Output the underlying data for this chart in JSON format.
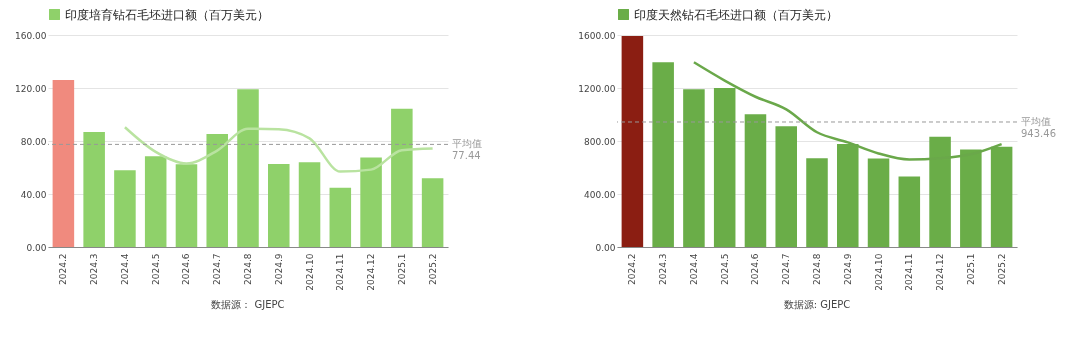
{
  "chart_data": [
    {
      "type": "bar",
      "categories": [
        "2024.2",
        "2024.3",
        "2024.4",
        "2024.5",
        "2024.6",
        "2024.7",
        "2024.8",
        "2024.9",
        "2024.10",
        "2024.11",
        "2024.12",
        "2025.1",
        "2025.2"
      ],
      "series": [
        {
          "name": "印度培育钻石毛坯进口额（百万美元）",
          "color": "#8fd16a",
          "colors": [
            "#f08a7e",
            "#8fd16a",
            "#8fd16a",
            "#8fd16a",
            "#8fd16a",
            "#8fd16a",
            "#8fd16a",
            "#8fd16a",
            "#8fd16a",
            "#8fd16a",
            "#8fd16a",
            "#8fd16a",
            "#8fd16a"
          ],
          "values": [
            126,
            86.8,
            58,
            68.5,
            62.4,
            85.3,
            119,
            62.7,
            64,
            44.7,
            67.5,
            104.3,
            51.8
          ]
        },
        {
          "type": "line",
          "color": "#b9e3a0",
          "x": [
            "2024.4",
            "2024.5",
            "2024.6",
            "2024.7",
            "2024.8",
            "2024.9",
            "2024.10",
            "2024.11",
            "2024.12",
            "2025.1",
            "2025.2"
          ],
          "values": [
            90.4,
            71.8,
            63,
            72.8,
            89.3,
            88.8,
            82,
            56.9,
            58.4,
            73.1,
            74.4
          ]
        }
      ],
      "ylim": [
        0,
        160
      ],
      "yticks": [
        {
          "value": 0,
          "label": "0.00"
        },
        {
          "value": 40,
          "label": "40.00"
        },
        {
          "value": 80,
          "label": "80.00"
        },
        {
          "value": 120,
          "label": "120.00"
        },
        {
          "value": 160,
          "label": "160.00"
        }
      ],
      "grid": "y",
      "legend": "top",
      "ref_lines": [
        {
          "axis": "y",
          "value": 77.44,
          "label": "平均值\n77.44",
          "color": "#999999",
          "line_style": "dashed"
        }
      ],
      "annotations": [
        "数据源： GJEPC"
      ]
    },
    {
      "type": "bar",
      "categories": [
        "2024.2",
        "2024.3",
        "2024.4",
        "2024.5",
        "2024.6",
        "2024.7",
        "2024.8",
        "2024.9",
        "2024.10",
        "2024.11",
        "2024.12",
        "2025.1",
        "2025.2"
      ],
      "series": [
        {
          "name": "印度天然钻石毛坯进口额（百万美元）",
          "color": "#6aad48",
          "colors": [
            "#8b1e12",
            "#6aad48",
            "#6aad48",
            "#6aad48",
            "#6aad48",
            "#6aad48",
            "#6aad48",
            "#6aad48",
            "#6aad48",
            "#6aad48",
            "#6aad48",
            "#6aad48",
            "#6aad48"
          ],
          "values": [
            1592,
            1394,
            1190,
            1200,
            1001,
            912,
            670,
            777,
            667,
            532,
            833,
            736,
            757
          ]
        },
        {
          "type": "line",
          "color": "#6aa84a",
          "x": [
            "2024.4",
            "2024.5",
            "2024.6",
            "2024.7",
            "2024.8",
            "2024.9",
            "2024.10",
            "2024.11",
            "2024.12",
            "2025.1",
            "2025.2"
          ],
          "values": [
            1394,
            1256,
            1134,
            1039,
            866,
            790,
            706,
            660,
            670,
            700,
            777
          ]
        }
      ],
      "ylim": [
        0,
        1600
      ],
      "yticks": [
        {
          "value": 0,
          "label": "0.00"
        },
        {
          "value": 400,
          "label": "400.00"
        },
        {
          "value": 800,
          "label": "800.00"
        },
        {
          "value": 1200,
          "label": "1200.00"
        },
        {
          "value": 1600,
          "label": "1600.00"
        }
      ],
      "grid": "y",
      "legend": "top",
      "ref_lines": [
        {
          "axis": "y",
          "value": 943.46,
          "label": "平均值\n943.46",
          "color": "#999999",
          "line_style": "dashed"
        }
      ],
      "annotations": [
        "数据源: GJEPC"
      ]
    }
  ]
}
